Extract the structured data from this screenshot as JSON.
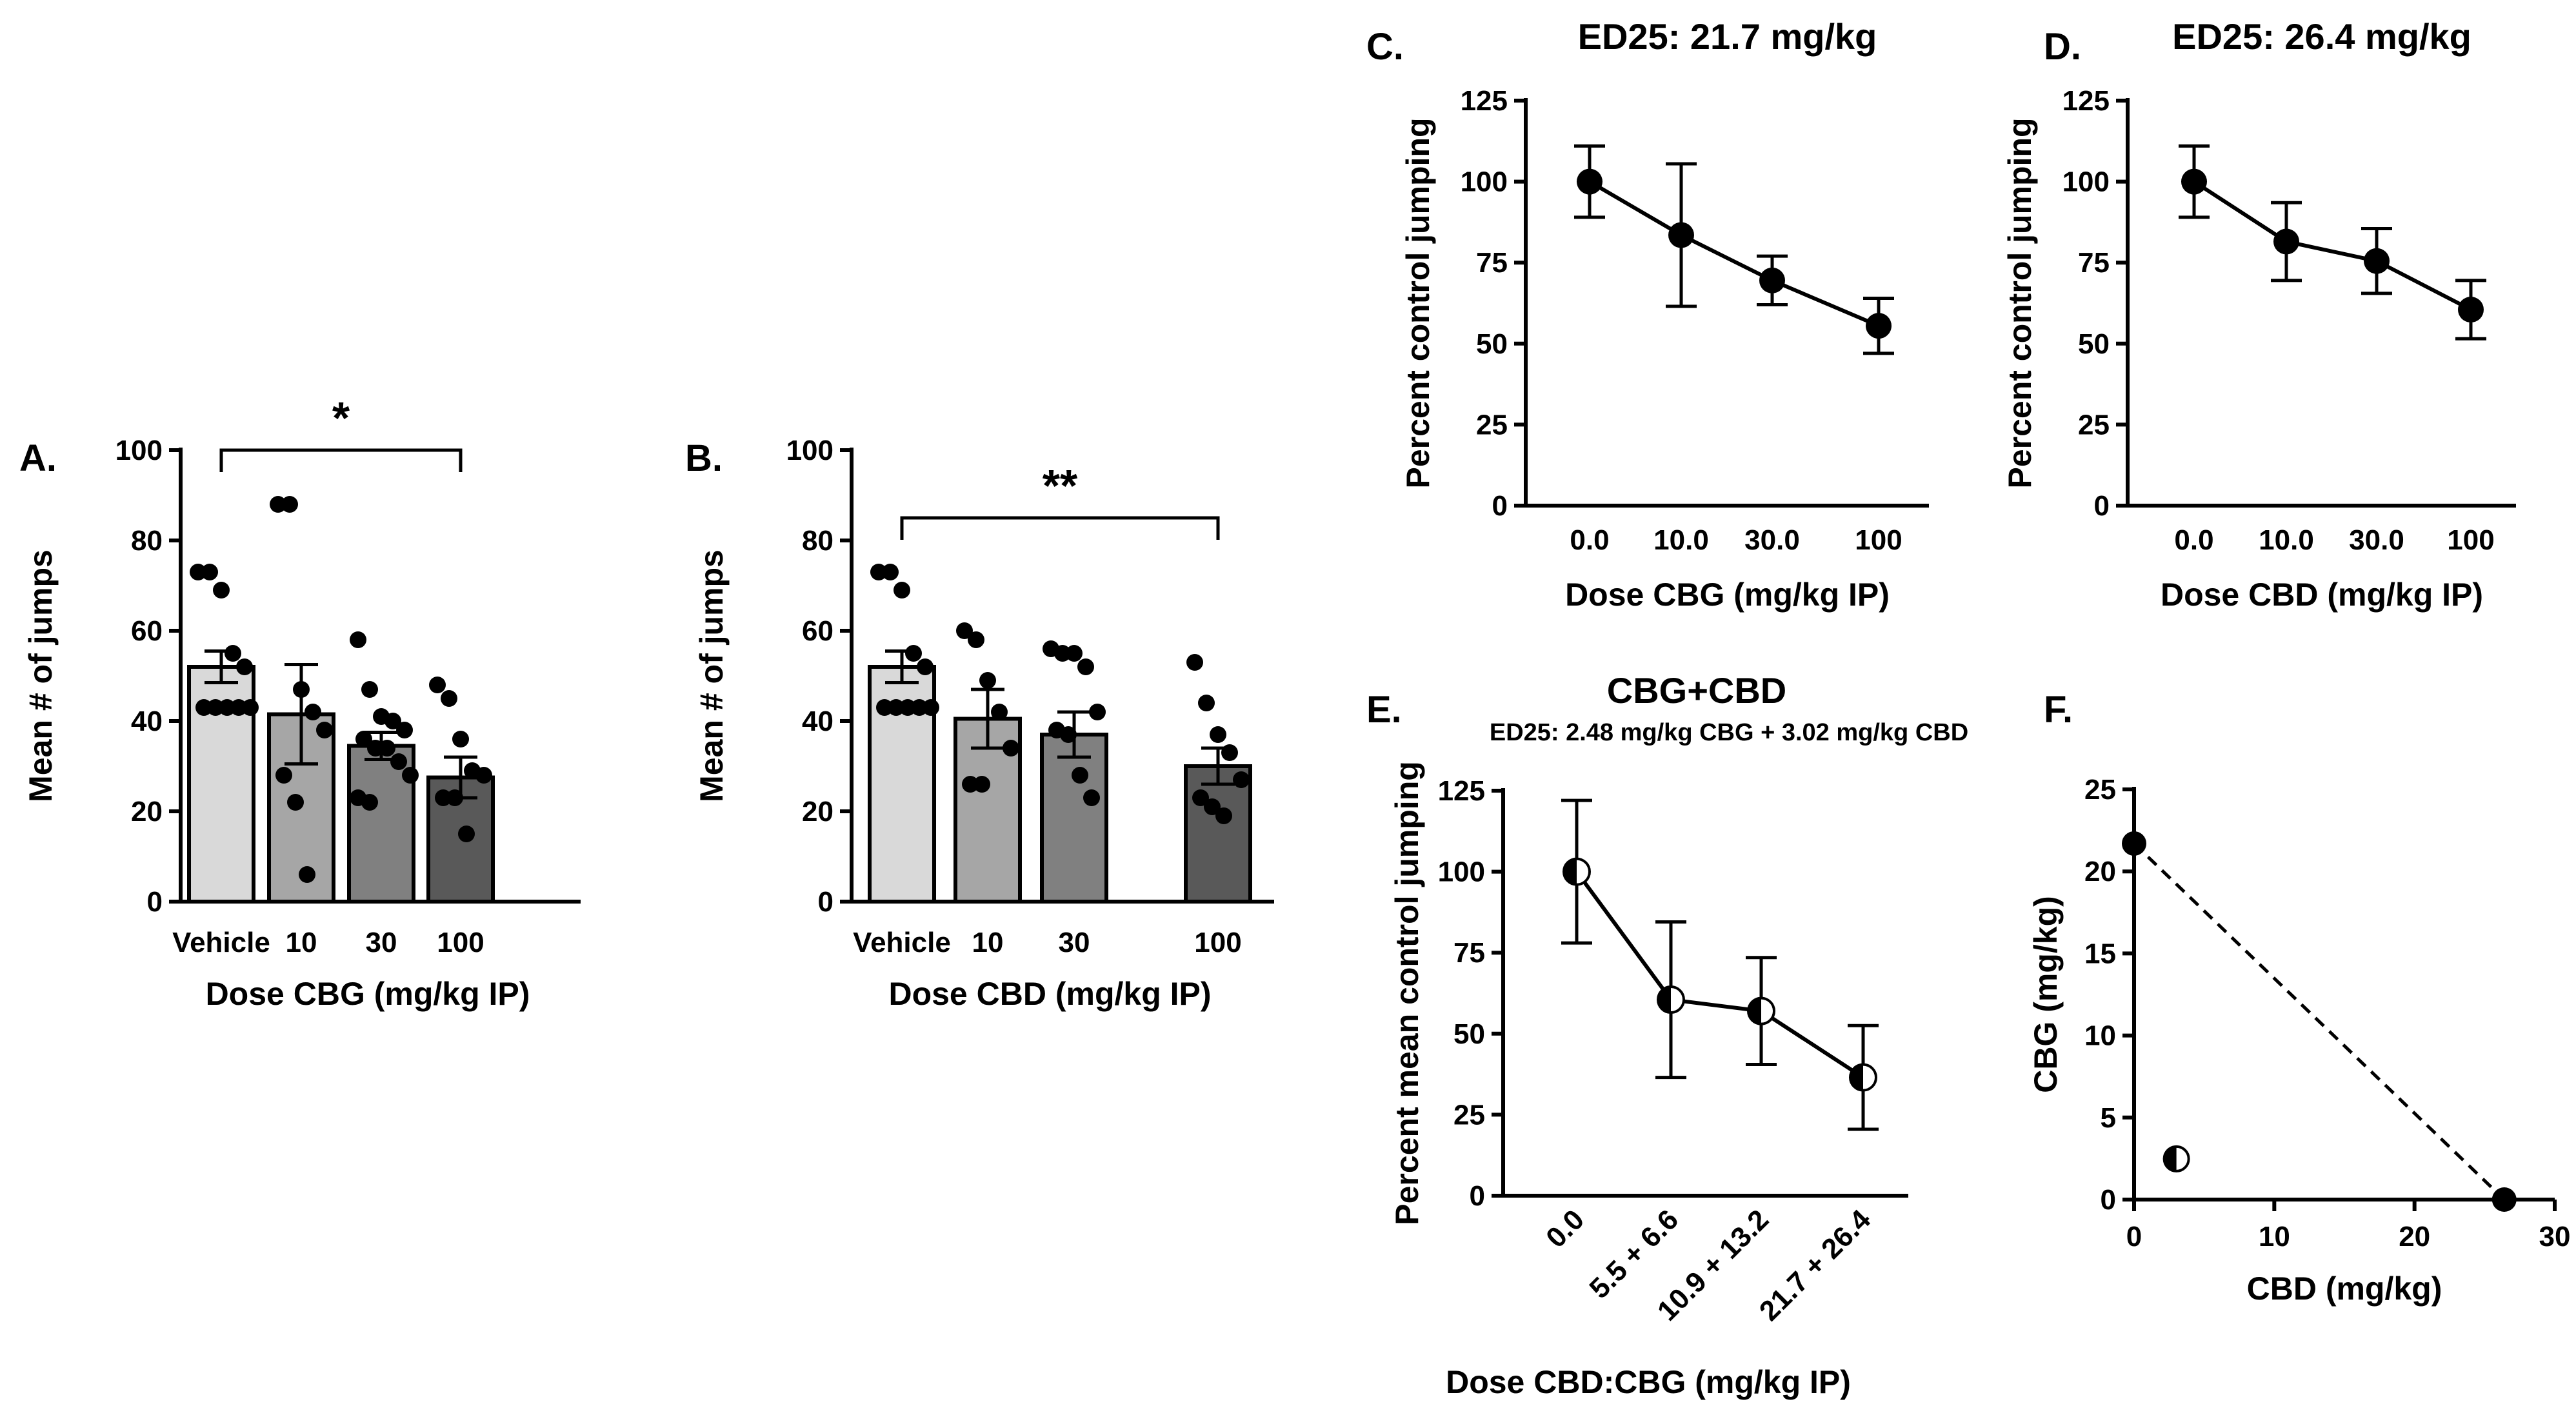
{
  "chart_data": [
    {
      "id": "A",
      "panel_label": "A.",
      "type": "bar",
      "categories": [
        "Vehicle",
        "10",
        "30",
        "100"
      ],
      "values": [
        52,
        41.5,
        34.5,
        27.5
      ],
      "errors": [
        3.5,
        11,
        3,
        4.5
      ],
      "bar_colors": [
        "#d9d9d9",
        "#a6a6a6",
        "#808080",
        "#595959"
      ],
      "points": [
        [
          73,
          73,
          69,
          55,
          52,
          43,
          43,
          43,
          43,
          43
        ],
        [
          88,
          88,
          47,
          42,
          38,
          28,
          22,
          6
        ],
        [
          58,
          47,
          41,
          40,
          38,
          36,
          34,
          34,
          31,
          28,
          23,
          22
        ],
        [
          48,
          45,
          36,
          29,
          28,
          23,
          23,
          15
        ]
      ],
      "xlabel": "Dose CBG (mg/kg IP)",
      "ylabel": "Mean # of jumps",
      "ylim": [
        0,
        100
      ],
      "yticks": [
        "0",
        "20",
        "40",
        "60",
        "80",
        "100"
      ],
      "significance": {
        "from": 0,
        "to": 3,
        "label": "*",
        "y": 100
      }
    },
    {
      "id": "B",
      "panel_label": "B.",
      "type": "bar",
      "categories": [
        "Vehicle",
        "10",
        "30",
        "100"
      ],
      "values": [
        52,
        40.5,
        37,
        30
      ],
      "errors": [
        3.5,
        6.5,
        5,
        4
      ],
      "bar_colors": [
        "#d9d9d9",
        "#a6a6a6",
        "#808080",
        "#595959"
      ],
      "points": [
        [
          73,
          73,
          69,
          55,
          52,
          43,
          43,
          43,
          43,
          43
        ],
        [
          60,
          58,
          49,
          42,
          34,
          26,
          26
        ],
        [
          56,
          55,
          55,
          52,
          42,
          38,
          37,
          28,
          23
        ],
        [
          53,
          44,
          37,
          33,
          27,
          23,
          21,
          19
        ]
      ],
      "xlabel": "Dose CBD (mg/kg IP)",
      "ylabel": "Mean # of jumps",
      "ylim": [
        0,
        100
      ],
      "yticks": [
        "0",
        "20",
        "40",
        "60",
        "80",
        "100"
      ],
      "significance": {
        "from": 0,
        "to": 3,
        "label": "**",
        "y": 85
      }
    },
    {
      "id": "C",
      "panel_label": "C.",
      "type": "line",
      "title": "ED25: 21.7 mg/kg",
      "categories": [
        "0.0",
        "10.0",
        "30.0",
        "100"
      ],
      "values": [
        100,
        83.5,
        69.5,
        55.5
      ],
      "errors": [
        11,
        22,
        7.5,
        8.5
      ],
      "marker": "filled",
      "xlabel": "Dose CBG (mg/kg IP)",
      "ylabel": "Percent control jumping",
      "ylim": [
        0,
        125
      ],
      "yticks": [
        "0",
        "25",
        "50",
        "75",
        "100",
        "125"
      ]
    },
    {
      "id": "D",
      "panel_label": "D.",
      "type": "line",
      "title": "ED25: 26.4 mg/kg",
      "categories": [
        "0.0",
        "10.0",
        "30.0",
        "100"
      ],
      "values": [
        100,
        81.5,
        75.5,
        60.5
      ],
      "errors": [
        11,
        12,
        10,
        9
      ],
      "marker": "filled",
      "xlabel": "Dose CBD (mg/kg IP)",
      "ylabel": "Percent control jumping",
      "ylim": [
        0,
        125
      ],
      "yticks": [
        "0",
        "25",
        "50",
        "75",
        "100",
        "125"
      ]
    },
    {
      "id": "E",
      "panel_label": "E.",
      "type": "line",
      "title": "CBG+CBD",
      "subtitle": "ED25: 2.48 mg/kg CBG + 3.02  mg/kg CBD",
      "categories": [
        "0.0",
        "5.5 + 6.6",
        "10.9 + 13.2",
        "21.7 + 26.4"
      ],
      "values": [
        100,
        60.5,
        57,
        36.5
      ],
      "errors": [
        22,
        24,
        16.5,
        16
      ],
      "marker": "half",
      "xlabel": "Dose CBD:CBG (mg/kg IP)",
      "ylabel": "Percent mean control jumping",
      "ylim": [
        0,
        125
      ],
      "yticks": [
        "0",
        "25",
        "50",
        "75",
        "100",
        "125"
      ]
    },
    {
      "id": "F",
      "panel_label": "F.",
      "type": "scatter",
      "points": [
        {
          "x": 0,
          "y": 21.7,
          "marker": "filled"
        },
        {
          "x": 26.4,
          "y": 0,
          "marker": "filled"
        },
        {
          "x": 3.02,
          "y": 2.48,
          "marker": "half"
        }
      ],
      "additivity_line": [
        [
          0,
          21.7
        ],
        [
          26.4,
          0
        ]
      ],
      "xlabel": "CBD (mg/kg)",
      "ylabel": "CBG (mg/kg)",
      "xlim": [
        0,
        30
      ],
      "ylim": [
        0,
        25
      ],
      "xticks": [
        "0",
        "10",
        "20",
        "30"
      ],
      "yticks": [
        "0",
        "5",
        "10",
        "15",
        "20",
        "25"
      ]
    }
  ]
}
